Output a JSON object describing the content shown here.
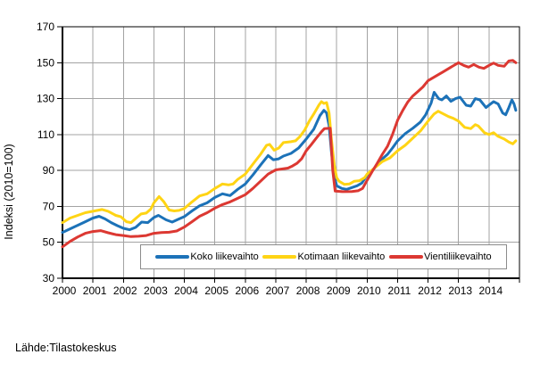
{
  "source": "Lähde:Tilastokeskus",
  "colors": {
    "background": "#FFFFFF",
    "grid": "#A3A3A3",
    "frame": "#000000",
    "axis_text": "#000000",
    "legend_border": "#8C8C8C"
  },
  "chart_data": {
    "type": "line",
    "title": "",
    "xlabel": "",
    "ylabel": "Indeksi (2010=100)",
    "grid": true,
    "legend_position": "bottom-inside",
    "x_axis": {
      "start": 2000,
      "end": 2015,
      "tick_years": [
        2000,
        2001,
        2002,
        2003,
        2004,
        2005,
        2006,
        2007,
        2008,
        2009,
        2010,
        2011,
        2012,
        2013,
        2014
      ]
    },
    "y_axis": {
      "min": 30,
      "max": 170,
      "ticks": [
        30,
        50,
        70,
        90,
        110,
        130,
        150,
        170
      ]
    },
    "series": [
      {
        "name": "Koko liikevaihto",
        "color": "#1C72B8",
        "points": [
          [
            2000.0,
            55.5
          ],
          [
            2000.25,
            57.5
          ],
          [
            2000.5,
            59.5
          ],
          [
            2000.75,
            61.5
          ],
          [
            2001.0,
            63.5
          ],
          [
            2001.2,
            64.5
          ],
          [
            2001.4,
            63.0
          ],
          [
            2001.6,
            61.0
          ],
          [
            2001.8,
            59.3
          ],
          [
            2002.0,
            57.8
          ],
          [
            2002.2,
            57.0
          ],
          [
            2002.4,
            58.3
          ],
          [
            2002.6,
            61.3
          ],
          [
            2002.8,
            61.0
          ],
          [
            2003.0,
            63.8
          ],
          [
            2003.15,
            65.0
          ],
          [
            2003.4,
            62.5
          ],
          [
            2003.6,
            61.3
          ],
          [
            2003.8,
            62.8
          ],
          [
            2004.0,
            64.3
          ],
          [
            2004.25,
            67.5
          ],
          [
            2004.5,
            70.3
          ],
          [
            2004.75,
            72.0
          ],
          [
            2005.0,
            75.0
          ],
          [
            2005.25,
            77.0
          ],
          [
            2005.5,
            76.0
          ],
          [
            2005.75,
            79.5
          ],
          [
            2006.0,
            82.5
          ],
          [
            2006.25,
            87.5
          ],
          [
            2006.5,
            93.0
          ],
          [
            2006.75,
            98.3
          ],
          [
            2006.92,
            96.0
          ],
          [
            2007.1,
            96.5
          ],
          [
            2007.25,
            98.0
          ],
          [
            2007.5,
            99.5
          ],
          [
            2007.75,
            102.5
          ],
          [
            2008.0,
            107.5
          ],
          [
            2008.25,
            113.0
          ],
          [
            2008.45,
            120.5
          ],
          [
            2008.58,
            123.5
          ],
          [
            2008.67,
            122.0
          ],
          [
            2008.75,
            115.0
          ],
          [
            2008.83,
            100.0
          ],
          [
            2008.92,
            87.0
          ],
          [
            2009.0,
            81.5
          ],
          [
            2009.17,
            80.0
          ],
          [
            2009.33,
            79.5
          ],
          [
            2009.5,
            80.5
          ],
          [
            2009.67,
            81.5
          ],
          [
            2009.83,
            83.0
          ],
          [
            2010.0,
            87.5
          ],
          [
            2010.17,
            90.0
          ],
          [
            2010.33,
            93.0
          ],
          [
            2010.5,
            96.5
          ],
          [
            2010.67,
            99.0
          ],
          [
            2010.83,
            102.5
          ],
          [
            2011.0,
            106.5
          ],
          [
            2011.25,
            110.5
          ],
          [
            2011.5,
            113.5
          ],
          [
            2011.75,
            117.0
          ],
          [
            2011.92,
            121.0
          ],
          [
            2012.1,
            127.5
          ],
          [
            2012.2,
            133.5
          ],
          [
            2012.35,
            130.0
          ],
          [
            2012.45,
            129.3
          ],
          [
            2012.6,
            131.5
          ],
          [
            2012.75,
            128.5
          ],
          [
            2012.9,
            130.0
          ],
          [
            2013.05,
            130.8
          ],
          [
            2013.25,
            126.3
          ],
          [
            2013.4,
            125.8
          ],
          [
            2013.55,
            130.0
          ],
          [
            2013.7,
            129.3
          ],
          [
            2013.9,
            125.0
          ],
          [
            2014.05,
            127.0
          ],
          [
            2014.15,
            128.3
          ],
          [
            2014.3,
            127.0
          ],
          [
            2014.45,
            122.0
          ],
          [
            2014.55,
            121.0
          ],
          [
            2014.65,
            125.0
          ],
          [
            2014.75,
            129.3
          ],
          [
            2014.82,
            127.0
          ],
          [
            2014.88,
            123.5
          ]
        ]
      },
      {
        "name": "Kotimaan liikevaihto",
        "color": "#FFD414",
        "points": [
          [
            2000.0,
            61.0
          ],
          [
            2000.25,
            63.5
          ],
          [
            2000.5,
            65.0
          ],
          [
            2000.75,
            66.5
          ],
          [
            2001.0,
            67.3
          ],
          [
            2001.3,
            68.3
          ],
          [
            2001.5,
            67.3
          ],
          [
            2001.75,
            65.0
          ],
          [
            2001.92,
            64.2
          ],
          [
            2002.1,
            61.5
          ],
          [
            2002.25,
            61.0
          ],
          [
            2002.42,
            63.5
          ],
          [
            2002.58,
            65.8
          ],
          [
            2002.75,
            66.3
          ],
          [
            2002.9,
            68.5
          ],
          [
            2003.0,
            72.0
          ],
          [
            2003.17,
            75.5
          ],
          [
            2003.33,
            72.5
          ],
          [
            2003.5,
            68.0
          ],
          [
            2003.67,
            67.5
          ],
          [
            2003.83,
            67.8
          ],
          [
            2004.0,
            68.8
          ],
          [
            2004.25,
            72.5
          ],
          [
            2004.5,
            75.8
          ],
          [
            2004.75,
            77.0
          ],
          [
            2005.0,
            80.0
          ],
          [
            2005.25,
            82.5
          ],
          [
            2005.45,
            82.0
          ],
          [
            2005.6,
            82.5
          ],
          [
            2005.75,
            85.0
          ],
          [
            2006.0,
            88.0
          ],
          [
            2006.25,
            93.5
          ],
          [
            2006.5,
            99.0
          ],
          [
            2006.7,
            104.0
          ],
          [
            2006.8,
            104.5
          ],
          [
            2006.95,
            101.3
          ],
          [
            2007.1,
            102.5
          ],
          [
            2007.25,
            105.5
          ],
          [
            2007.5,
            106.0
          ],
          [
            2007.65,
            106.5
          ],
          [
            2007.8,
            109.0
          ],
          [
            2007.95,
            112.5
          ],
          [
            2008.1,
            117.5
          ],
          [
            2008.25,
            121.5
          ],
          [
            2008.42,
            126.5
          ],
          [
            2008.5,
            128.3
          ],
          [
            2008.58,
            127.3
          ],
          [
            2008.67,
            127.8
          ],
          [
            2008.75,
            122.0
          ],
          [
            2008.83,
            107.0
          ],
          [
            2008.92,
            93.0
          ],
          [
            2009.0,
            86.0
          ],
          [
            2009.08,
            84.0
          ],
          [
            2009.25,
            82.3
          ],
          [
            2009.42,
            82.5
          ],
          [
            2009.58,
            84.0
          ],
          [
            2009.75,
            84.3
          ],
          [
            2009.92,
            86.0
          ],
          [
            2010.0,
            88.0
          ],
          [
            2010.25,
            91.5
          ],
          [
            2010.5,
            95.0
          ],
          [
            2010.75,
            97.0
          ],
          [
            2011.0,
            101.0
          ],
          [
            2011.25,
            104.0
          ],
          [
            2011.5,
            108.0
          ],
          [
            2011.75,
            112.0
          ],
          [
            2012.0,
            117.5
          ],
          [
            2012.2,
            121.5
          ],
          [
            2012.33,
            123.0
          ],
          [
            2012.5,
            121.5
          ],
          [
            2012.67,
            120.0
          ],
          [
            2012.83,
            119.0
          ],
          [
            2013.0,
            117.5
          ],
          [
            2013.2,
            114.0
          ],
          [
            2013.4,
            113.3
          ],
          [
            2013.55,
            115.5
          ],
          [
            2013.65,
            114.8
          ],
          [
            2013.85,
            111.0
          ],
          [
            2014.0,
            110.0
          ],
          [
            2014.15,
            111.0
          ],
          [
            2014.3,
            109.0
          ],
          [
            2014.5,
            107.5
          ],
          [
            2014.65,
            105.8
          ],
          [
            2014.78,
            104.8
          ],
          [
            2014.88,
            106.5
          ]
        ]
      },
      {
        "name": "Vientiliikevaihto",
        "color": "#DC3832",
        "points": [
          [
            2000.0,
            47.5
          ],
          [
            2000.25,
            50.5
          ],
          [
            2000.5,
            53.0
          ],
          [
            2000.75,
            55.0
          ],
          [
            2001.0,
            56.0
          ],
          [
            2001.25,
            56.5
          ],
          [
            2001.5,
            55.3
          ],
          [
            2001.75,
            54.3
          ],
          [
            2002.0,
            53.8
          ],
          [
            2002.25,
            53.2
          ],
          [
            2002.5,
            53.4
          ],
          [
            2002.75,
            53.8
          ],
          [
            2003.0,
            55.0
          ],
          [
            2003.25,
            55.4
          ],
          [
            2003.5,
            55.6
          ],
          [
            2003.75,
            56.3
          ],
          [
            2004.0,
            58.5
          ],
          [
            2004.25,
            61.5
          ],
          [
            2004.5,
            64.5
          ],
          [
            2004.75,
            66.5
          ],
          [
            2005.0,
            69.0
          ],
          [
            2005.25,
            71.0
          ],
          [
            2005.5,
            72.5
          ],
          [
            2005.75,
            74.5
          ],
          [
            2006.0,
            76.5
          ],
          [
            2006.25,
            80.0
          ],
          [
            2006.5,
            84.0
          ],
          [
            2006.75,
            88.0
          ],
          [
            2007.0,
            90.3
          ],
          [
            2007.2,
            90.8
          ],
          [
            2007.4,
            91.3
          ],
          [
            2007.55,
            92.5
          ],
          [
            2007.7,
            94.0
          ],
          [
            2007.85,
            96.5
          ],
          [
            2008.0,
            101.0
          ],
          [
            2008.17,
            104.5
          ],
          [
            2008.33,
            108.0
          ],
          [
            2008.5,
            111.5
          ],
          [
            2008.6,
            113.3
          ],
          [
            2008.79,
            113.5
          ],
          [
            2008.87,
            90.0
          ],
          [
            2008.95,
            78.5
          ],
          [
            2009.2,
            78.2
          ],
          [
            2009.5,
            78.3
          ],
          [
            2009.7,
            78.7
          ],
          [
            2009.85,
            80.0
          ],
          [
            2010.0,
            84.5
          ],
          [
            2010.17,
            89.5
          ],
          [
            2010.33,
            94.0
          ],
          [
            2010.5,
            99.0
          ],
          [
            2010.67,
            103.5
          ],
          [
            2010.83,
            110.0
          ],
          [
            2011.0,
            118.0
          ],
          [
            2011.17,
            123.5
          ],
          [
            2011.33,
            128.0
          ],
          [
            2011.5,
            131.5
          ],
          [
            2011.67,
            134.0
          ],
          [
            2011.83,
            136.5
          ],
          [
            2012.0,
            140.0
          ],
          [
            2012.25,
            142.5
          ],
          [
            2012.5,
            145.0
          ],
          [
            2012.75,
            147.5
          ],
          [
            2013.0,
            150.0
          ],
          [
            2013.17,
            148.5
          ],
          [
            2013.33,
            147.5
          ],
          [
            2013.5,
            149.0
          ],
          [
            2013.67,
            147.5
          ],
          [
            2013.83,
            146.8
          ],
          [
            2014.0,
            148.5
          ],
          [
            2014.15,
            149.8
          ],
          [
            2014.3,
            148.5
          ],
          [
            2014.5,
            148.0
          ],
          [
            2014.65,
            151.0
          ],
          [
            2014.78,
            151.3
          ],
          [
            2014.88,
            150.0
          ]
        ]
      }
    ]
  }
}
